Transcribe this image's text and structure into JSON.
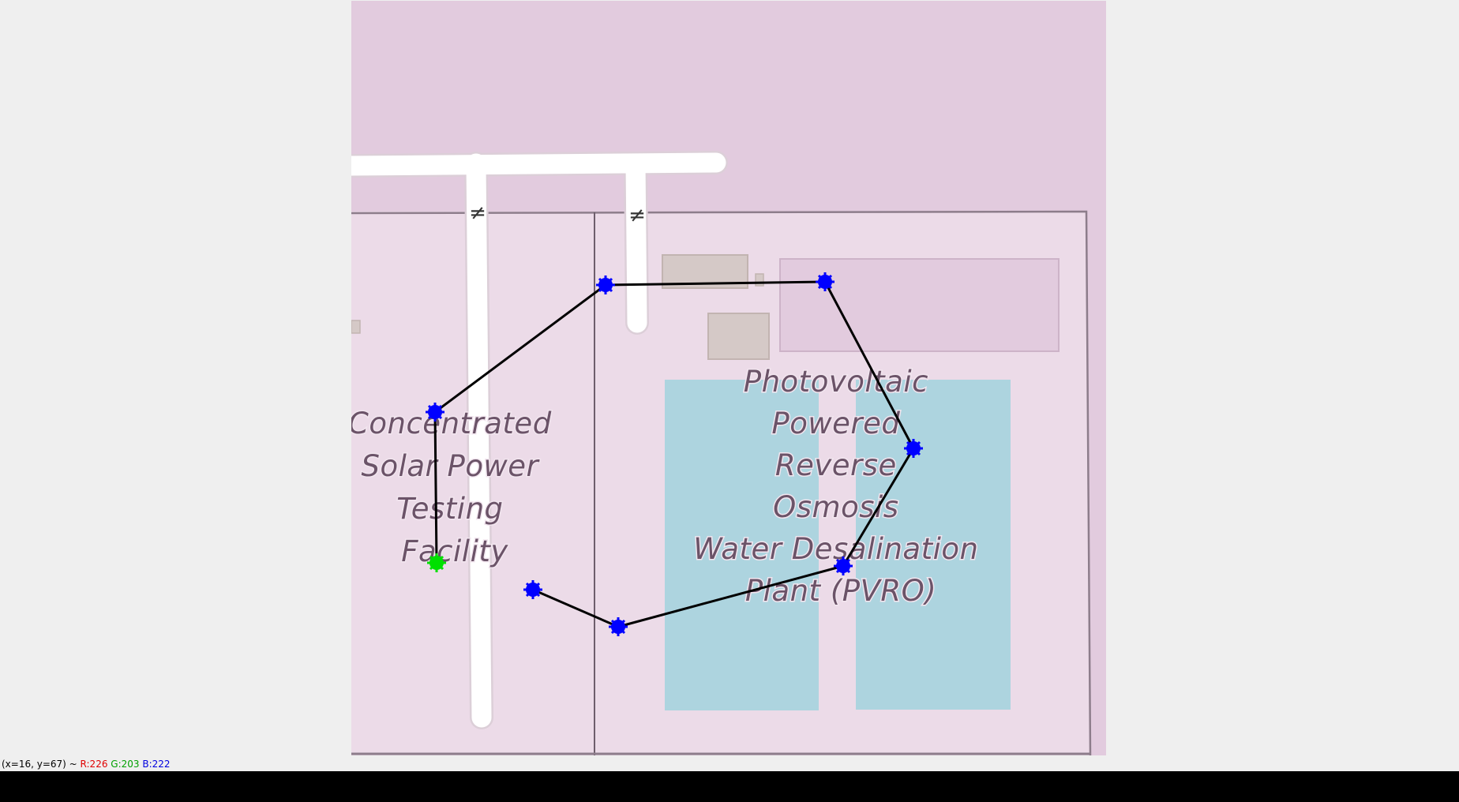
{
  "map": {
    "labels": {
      "csp": [
        "Concentrated",
        "Solar Power",
        "Testing",
        "Facility"
      ],
      "pvro": [
        "Photovoltaic",
        "Powered",
        "Reverse",
        "Osmosis",
        "Water Desalination",
        "Plant (PVRO)"
      ]
    },
    "oneway_glyph": "≠",
    "colors": {
      "background": "#e2cbde",
      "site_fill": "#ecdbe8",
      "road": "#ffffff",
      "building": "#d5c9c7",
      "basin": "#add4df",
      "polygon_line": "#000000",
      "vertex": "#0000ff",
      "start_vertex": "#00e000"
    }
  },
  "status": {
    "coords": "(x=16, y=67) ~",
    "r": "R:226",
    "g": "G:203",
    "b": "B:222"
  }
}
